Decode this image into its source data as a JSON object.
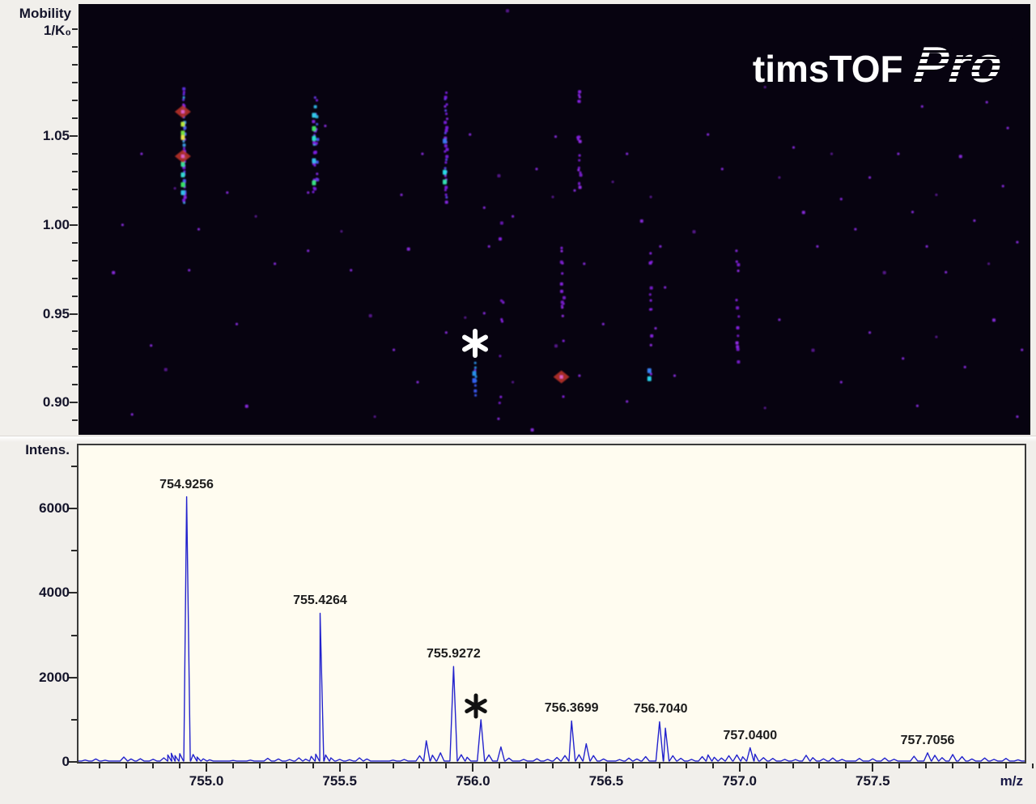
{
  "logo": {
    "name": "timsTOF",
    "variant": "Pro"
  },
  "chart_data": [
    {
      "type": "heatmap",
      "ylabel_line1": "Mobility",
      "ylabel_line2": "1/K₀",
      "xlabel": "m/z",
      "xlim": [
        754.52,
        758.07
      ],
      "ylim": [
        0.882,
        1.124
      ],
      "yticks": [
        1.05,
        1.0,
        0.95,
        0.9
      ],
      "ytick_labels": [
        "1.05",
        "1.00",
        "0.95",
        "0.90"
      ],
      "y_minor_step": 0.01,
      "bg_color": "#070310",
      "dot_color_bright": "#8a2be2",
      "dot_color_dim": "#5a1890",
      "annotation": {
        "symbol": "*",
        "mz": 756.0,
        "mobility": 0.9335,
        "color": "#ffffff"
      },
      "clusters": [
        {
          "mz": 754.909,
          "mob": [
            1.013,
            1.077
          ],
          "n": 40,
          "jit": 1.2,
          "dense": true,
          "palette": [
            "#7a1ee0",
            "#6030e8",
            "#4860f0",
            "#7a1ee0",
            "#38a0e8",
            "#8a28e8"
          ],
          "hot": [
            [
              1.0565,
              "#b8e838"
            ],
            [
              1.0515,
              "#78e040"
            ],
            [
              1.049,
              "#e8e048"
            ],
            [
              1.034,
              "#38e098"
            ],
            [
              1.028,
              "#30d8d0"
            ],
            [
              1.0225,
              "#38e060"
            ],
            [
              1.018,
              "#30c0e8"
            ]
          ],
          "diamonds": [
            1.0635,
            1.0385
          ]
        },
        {
          "mz": 755.398,
          "mob": [
            1.018,
            1.073
          ],
          "n": 34,
          "jit": 2.8,
          "dense": false,
          "palette": [
            "#7a1ee0",
            "#8828e8",
            "#4858f0",
            "#30b8e8",
            "#7a1ee0",
            "#6838e8"
          ],
          "hot": [
            [
              1.0615,
              "#30c8e8"
            ],
            [
              1.054,
              "#40e060"
            ],
            [
              1.0485,
              "#28e0c8"
            ],
            [
              1.036,
              "#30b8e8"
            ],
            [
              1.0235,
              "#38e080"
            ]
          ],
          "diamonds": []
        },
        {
          "mz": 755.886,
          "mob": [
            1.014,
            1.075
          ],
          "n": 30,
          "jit": 1.5,
          "dense": true,
          "palette": [
            "#7a1ee0",
            "#8828e8",
            "#5a40ee",
            "#7a1ee0"
          ],
          "hot": [
            [
              1.0295,
              "#28dce8"
            ],
            [
              1.024,
              "#30e0b0"
            ],
            [
              1.047,
              "#3878f0"
            ]
          ],
          "diamonds": []
        },
        {
          "mz": 756.382,
          "mob": [
            1.021,
            1.078
          ],
          "n": 20,
          "jit": 1.8,
          "dense": false,
          "palette": [
            "#8a22e8",
            "#7a1ad0",
            "#9a30f0"
          ],
          "hot": [],
          "diamonds": []
        },
        {
          "mz": 755.996,
          "mob": [
            0.9055,
            0.9235
          ],
          "n": 8,
          "jit": 0.7,
          "dense": true,
          "palette": [
            "#6a28e8",
            "#3858f0",
            "#2890e8"
          ],
          "hot": [
            [
              0.9125,
              "#3060f0"
            ],
            [
              0.9165,
              "#2890e8"
            ]
          ],
          "diamonds": []
        },
        {
          "mz": 756.321,
          "mob": [
            0.899,
            0.988
          ],
          "n": 15,
          "jit": 1.8,
          "dense": false,
          "palette": [
            "#8a22e8",
            "#7a1ad0",
            "#9a30f0"
          ],
          "hot": [],
          "diamonds": [
            0.9145
          ]
        },
        {
          "mz": 756.649,
          "mob": [
            0.906,
            0.986
          ],
          "n": 11,
          "jit": 1.5,
          "dense": false,
          "palette": [
            "#8a22e8",
            "#7a1ad0",
            "#9a30f0"
          ],
          "hot": [
            [
              0.9135,
              "#28d0e8"
            ],
            [
              0.918,
              "#3880f0"
            ]
          ],
          "diamonds": []
        },
        {
          "mz": 756.974,
          "mob": [
            0.901,
            0.983
          ],
          "n": 12,
          "jit": 2.0,
          "dense": false,
          "palette": [
            "#8a22e8",
            "#7a1ad0",
            "#9a30f0"
          ],
          "hot": [],
          "diamonds": []
        },
        {
          "mz": 756.093,
          "mob": [
            0.878,
            1.008
          ],
          "n": 9,
          "jit": 2.5,
          "dense": false,
          "palette": [
            "#7a1ad0",
            "#6a14b8",
            "#8a22e8"
          ],
          "hot": [],
          "diamonds": []
        }
      ],
      "scatter": [
        [
          0.449,
          0.012
        ],
        [
          0.953,
          0.225
        ],
        [
          0.885,
          0.235
        ],
        [
          0.975,
          0.285
        ],
        [
          0.72,
          0.19
        ],
        [
          0.045,
          0.51
        ],
        [
          0.035,
          0.62
        ],
        [
          0.065,
          0.345
        ],
        [
          0.1,
          0.425
        ],
        [
          0.115,
          0.615
        ],
        [
          0.165,
          0.74
        ],
        [
          0.075,
          0.79
        ],
        [
          0.09,
          0.845
        ],
        [
          0.055,
          0.95
        ],
        [
          0.125,
          0.52
        ],
        [
          0.155,
          0.435
        ],
        [
          0.185,
          0.49
        ],
        [
          0.205,
          0.6
        ],
        [
          0.175,
          0.93
        ],
        [
          0.24,
          0.57
        ],
        [
          0.275,
          0.525
        ],
        [
          0.285,
          0.615
        ],
        [
          0.24,
          0.435
        ],
        [
          0.258,
          0.28
        ],
        [
          0.305,
          0.72
        ],
        [
          0.33,
          0.8
        ],
        [
          0.355,
          0.875
        ],
        [
          0.385,
          0.76
        ],
        [
          0.31,
          0.955
        ],
        [
          0.338,
          0.44
        ],
        [
          0.345,
          0.565
        ],
        [
          0.36,
          0.345
        ],
        [
          0.405,
          0.725
        ],
        [
          0.425,
          0.715
        ],
        [
          0.41,
          0.3
        ],
        [
          0.425,
          0.47
        ],
        [
          0.44,
          0.395
        ],
        [
          0.455,
          0.49
        ],
        [
          0.43,
          0.56
        ],
        [
          0.445,
          0.69
        ],
        [
          0.455,
          0.875
        ],
        [
          0.44,
          0.96
        ],
        [
          0.475,
          0.985
        ],
        [
          0.48,
          0.38
        ],
        [
          0.497,
          0.445
        ],
        [
          0.52,
          0.43
        ],
        [
          0.5,
          0.305
        ],
        [
          0.53,
          0.6
        ],
        [
          0.5,
          0.79
        ],
        [
          0.525,
          0.86
        ],
        [
          0.55,
          0.74
        ],
        [
          0.575,
          0.92
        ],
        [
          0.56,
          0.41
        ],
        [
          0.575,
          0.345
        ],
        [
          0.59,
          0.5
        ],
        [
          0.61,
          0.56
        ],
        [
          0.6,
          0.445
        ],
        [
          0.615,
          0.655
        ],
        [
          0.605,
          0.75
        ],
        [
          0.625,
          0.86
        ],
        [
          0.645,
          0.525
        ],
        [
          0.66,
          0.3
        ],
        [
          0.675,
          0.38
        ],
        [
          0.69,
          0.57
        ],
        [
          0.735,
          0.4
        ],
        [
          0.75,
          0.33
        ],
        [
          0.76,
          0.48
        ],
        [
          0.775,
          0.56
        ],
        [
          0.79,
          0.345
        ],
        [
          0.8,
          0.45
        ],
        [
          0.815,
          0.52
        ],
        [
          0.83,
          0.4
        ],
        [
          0.845,
          0.62
        ],
        [
          0.86,
          0.345
        ],
        [
          0.875,
          0.48
        ],
        [
          0.89,
          0.56
        ],
        [
          0.9,
          0.44
        ],
        [
          0.91,
          0.62
        ],
        [
          0.925,
          0.35
        ],
        [
          0.94,
          0.5
        ],
        [
          0.955,
          0.6
        ],
        [
          0.97,
          0.42
        ],
        [
          0.985,
          0.55
        ],
        [
          0.735,
          0.73
        ],
        [
          0.77,
          0.8
        ],
        [
          0.8,
          0.875
        ],
        [
          0.83,
          0.76
        ],
        [
          0.865,
          0.82
        ],
        [
          0.9,
          0.77
        ],
        [
          0.93,
          0.84
        ],
        [
          0.96,
          0.73
        ],
        [
          0.99,
          0.8
        ],
        [
          0.72,
          0.935
        ],
        [
          0.88,
          0.93
        ],
        [
          0.985,
          0.955
        ]
      ]
    },
    {
      "type": "line",
      "ylabel": "Intens.",
      "xlabel": "m/z",
      "xlim": [
        754.52,
        758.07
      ],
      "ylim": [
        0,
        7500
      ],
      "yticks": [
        0,
        2000,
        4000,
        6000
      ],
      "ytick_labels": [
        "0",
        "2000",
        "4000",
        "6000"
      ],
      "y_minor_step": 1000,
      "xticks": [
        755.0,
        755.5,
        756.0,
        756.5,
        757.0,
        757.5
      ],
      "xtick_labels": [
        "755.0",
        "755.5",
        "756.0",
        "756.5",
        "757.0",
        "757.5"
      ],
      "x_minor_step": 0.1,
      "line_color": "#2323cd",
      "bg_color": "#fffcf0",
      "annotation": {
        "symbol": "*",
        "mz": 756.03,
        "intensity": 1000,
        "color": "#111111"
      },
      "peaks_labeled": [
        {
          "mz": 754.9256,
          "intensity": 6280,
          "label": "754.9256"
        },
        {
          "mz": 755.4264,
          "intensity": 3520,
          "label": "755.4264"
        },
        {
          "mz": 755.9272,
          "intensity": 2260,
          "label": "755.9272"
        },
        {
          "mz": 756.3699,
          "intensity": 970,
          "label": "756.3699"
        },
        {
          "mz": 756.704,
          "intensity": 950,
          "label": "756.7040"
        },
        {
          "mz": 757.04,
          "intensity": 335,
          "label": "757.0400"
        },
        {
          "mz": 757.7056,
          "intensity": 215,
          "label": "757.7056"
        }
      ],
      "profile": [
        [
          754.545,
          45
        ],
        [
          754.585,
          70
        ],
        [
          754.62,
          40
        ],
        [
          754.69,
          115
        ],
        [
          754.717,
          70
        ],
        [
          754.752,
          75
        ],
        [
          754.8,
          62
        ],
        [
          754.84,
          95
        ],
        [
          754.855,
          165
        ],
        [
          754.868,
          205
        ],
        [
          754.882,
          150
        ],
        [
          754.9,
          195
        ],
        [
          754.9256,
          6280
        ],
        [
          754.95,
          175
        ],
        [
          754.965,
          115
        ],
        [
          754.988,
          72
        ],
        [
          755.012,
          50
        ],
        [
          755.1,
          35
        ],
        [
          755.165,
          42
        ],
        [
          755.23,
          85
        ],
        [
          755.27,
          70
        ],
        [
          755.312,
          55
        ],
        [
          755.347,
          95
        ],
        [
          755.372,
          65
        ],
        [
          755.393,
          130
        ],
        [
          755.41,
          185
        ],
        [
          755.4264,
          3520
        ],
        [
          755.447,
          165
        ],
        [
          755.467,
          95
        ],
        [
          755.5,
          60
        ],
        [
          755.537,
          52
        ],
        [
          755.574,
          95
        ],
        [
          755.602,
          70
        ],
        [
          755.7,
          42
        ],
        [
          755.742,
          58
        ],
        [
          755.8,
          145
        ],
        [
          755.825,
          500
        ],
        [
          755.848,
          160
        ],
        [
          755.878,
          215
        ],
        [
          755.9272,
          2260
        ],
        [
          755.956,
          170
        ],
        [
          755.978,
          110
        ],
        [
          756.03,
          1000
        ],
        [
          756.06,
          165
        ],
        [
          756.105,
          355
        ],
        [
          756.135,
          90
        ],
        [
          756.19,
          60
        ],
        [
          756.24,
          75
        ],
        [
          756.28,
          60
        ],
        [
          756.315,
          105
        ],
        [
          756.345,
          150
        ],
        [
          756.3699,
          970
        ],
        [
          756.398,
          170
        ],
        [
          756.425,
          430
        ],
        [
          756.452,
          150
        ],
        [
          756.49,
          70
        ],
        [
          756.55,
          55
        ],
        [
          756.585,
          90
        ],
        [
          756.615,
          70
        ],
        [
          756.648,
          125
        ],
        [
          756.7,
          950
        ],
        [
          756.722,
          800
        ],
        [
          756.75,
          145
        ],
        [
          756.78,
          85
        ],
        [
          756.82,
          60
        ],
        [
          756.86,
          125
        ],
        [
          756.882,
          165
        ],
        [
          756.905,
          110
        ],
        [
          756.932,
          92
        ],
        [
          756.96,
          145
        ],
        [
          756.99,
          165
        ],
        [
          757.012,
          120
        ],
        [
          757.04,
          335
        ],
        [
          757.058,
          185
        ],
        [
          757.09,
          100
        ],
        [
          757.125,
          82
        ],
        [
          757.17,
          60
        ],
        [
          757.21,
          55
        ],
        [
          757.25,
          155
        ],
        [
          757.275,
          100
        ],
        [
          757.315,
          72
        ],
        [
          757.35,
          92
        ],
        [
          757.385,
          60
        ],
        [
          757.45,
          82
        ],
        [
          757.5,
          72
        ],
        [
          757.545,
          92
        ],
        [
          757.58,
          62
        ],
        [
          757.655,
          135
        ],
        [
          757.7056,
          215
        ],
        [
          757.733,
          155
        ],
        [
          757.76,
          100
        ],
        [
          757.8,
          175
        ],
        [
          757.835,
          125
        ],
        [
          757.872,
          70
        ],
        [
          757.92,
          92
        ],
        [
          757.955,
          60
        ],
        [
          758.0,
          82
        ],
        [
          758.045,
          50
        ]
      ]
    }
  ]
}
